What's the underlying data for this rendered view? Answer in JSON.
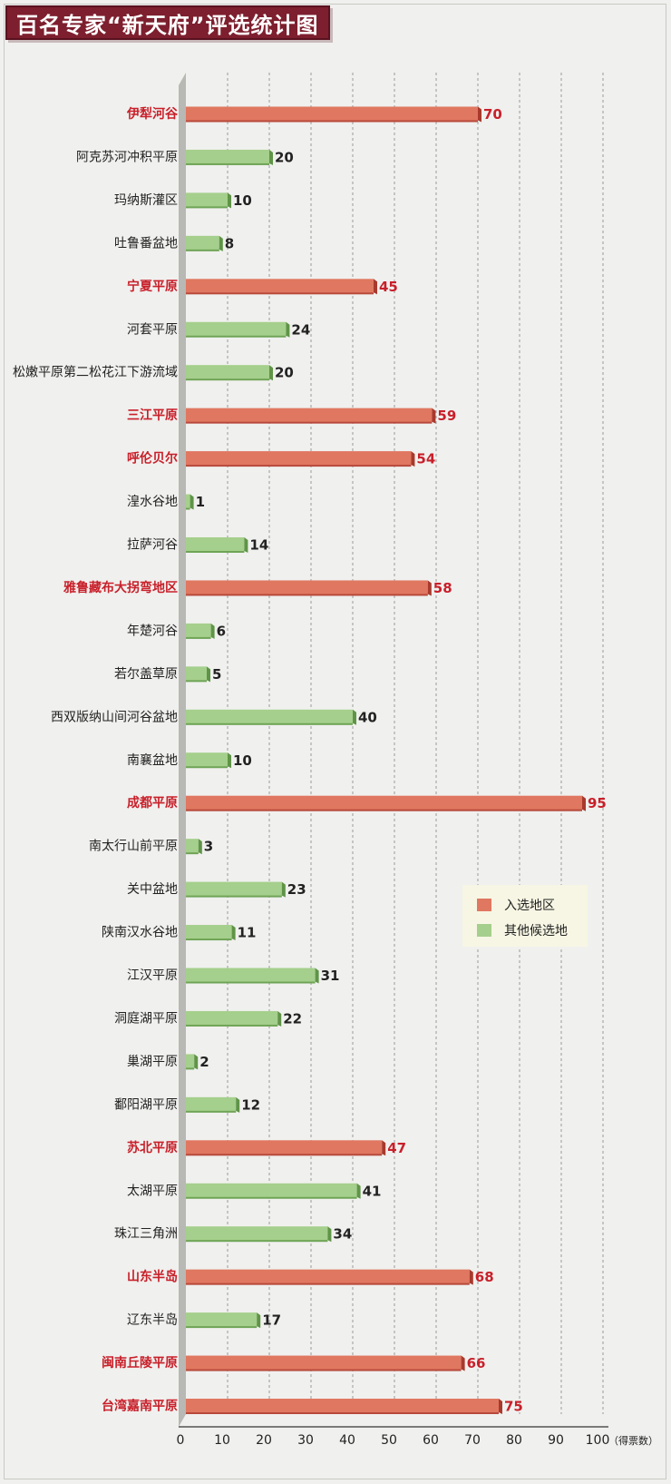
{
  "title": "百名专家“新天府”评选统计图",
  "colors": {
    "selected": "#e07760",
    "other": "#a5cf8c",
    "selected_label": "#c8202a",
    "other_label": "#222222"
  },
  "legend": {
    "selected": "入选地区",
    "other": "其他候选地"
  },
  "chart_data": {
    "type": "bar",
    "orientation": "horizontal",
    "xlabel": "（得票数）",
    "xlim": [
      0,
      100
    ],
    "xticks": [
      0,
      10,
      20,
      30,
      40,
      50,
      60,
      70,
      80,
      90,
      100
    ],
    "grid": true,
    "legend_position": "right",
    "categories": [
      "伊犁河谷",
      "阿克苏河冲积平原",
      "玛纳斯灌区",
      "吐鲁番盆地",
      "宁夏平原",
      "河套平原",
      "松嫩平原第二松花江下游流域",
      "三江平原",
      "呼伦贝尔",
      "湟水谷地",
      "拉萨河谷",
      "雅鲁藏布大拐弯地区",
      "年楚河谷",
      "若尔盖草原",
      "西双版纳山间河谷盆地",
      "南襄盆地",
      "成都平原",
      "南太行山前平原",
      "关中盆地",
      "陕南汉水谷地",
      "江汉平原",
      "洞庭湖平原",
      "巢湖平原",
      "鄱阳湖平原",
      "苏北平原",
      "太湖平原",
      "珠江三角洲",
      "山东半岛",
      "辽东半岛",
      "闽南丘陵平原",
      "台湾嘉南平原"
    ],
    "values": [
      70,
      20,
      10,
      8,
      45,
      24,
      20,
      59,
      54,
      1,
      14,
      58,
      6,
      5,
      40,
      10,
      95,
      3,
      23,
      11,
      31,
      22,
      2,
      12,
      47,
      41,
      34,
      68,
      17,
      66,
      75
    ],
    "selected": [
      true,
      false,
      false,
      false,
      true,
      false,
      false,
      true,
      true,
      false,
      false,
      true,
      false,
      false,
      false,
      false,
      true,
      false,
      false,
      false,
      false,
      false,
      false,
      false,
      true,
      false,
      false,
      true,
      false,
      true,
      true
    ],
    "series_names": {
      "selected": "入选地区",
      "other": "其他候选地"
    }
  }
}
